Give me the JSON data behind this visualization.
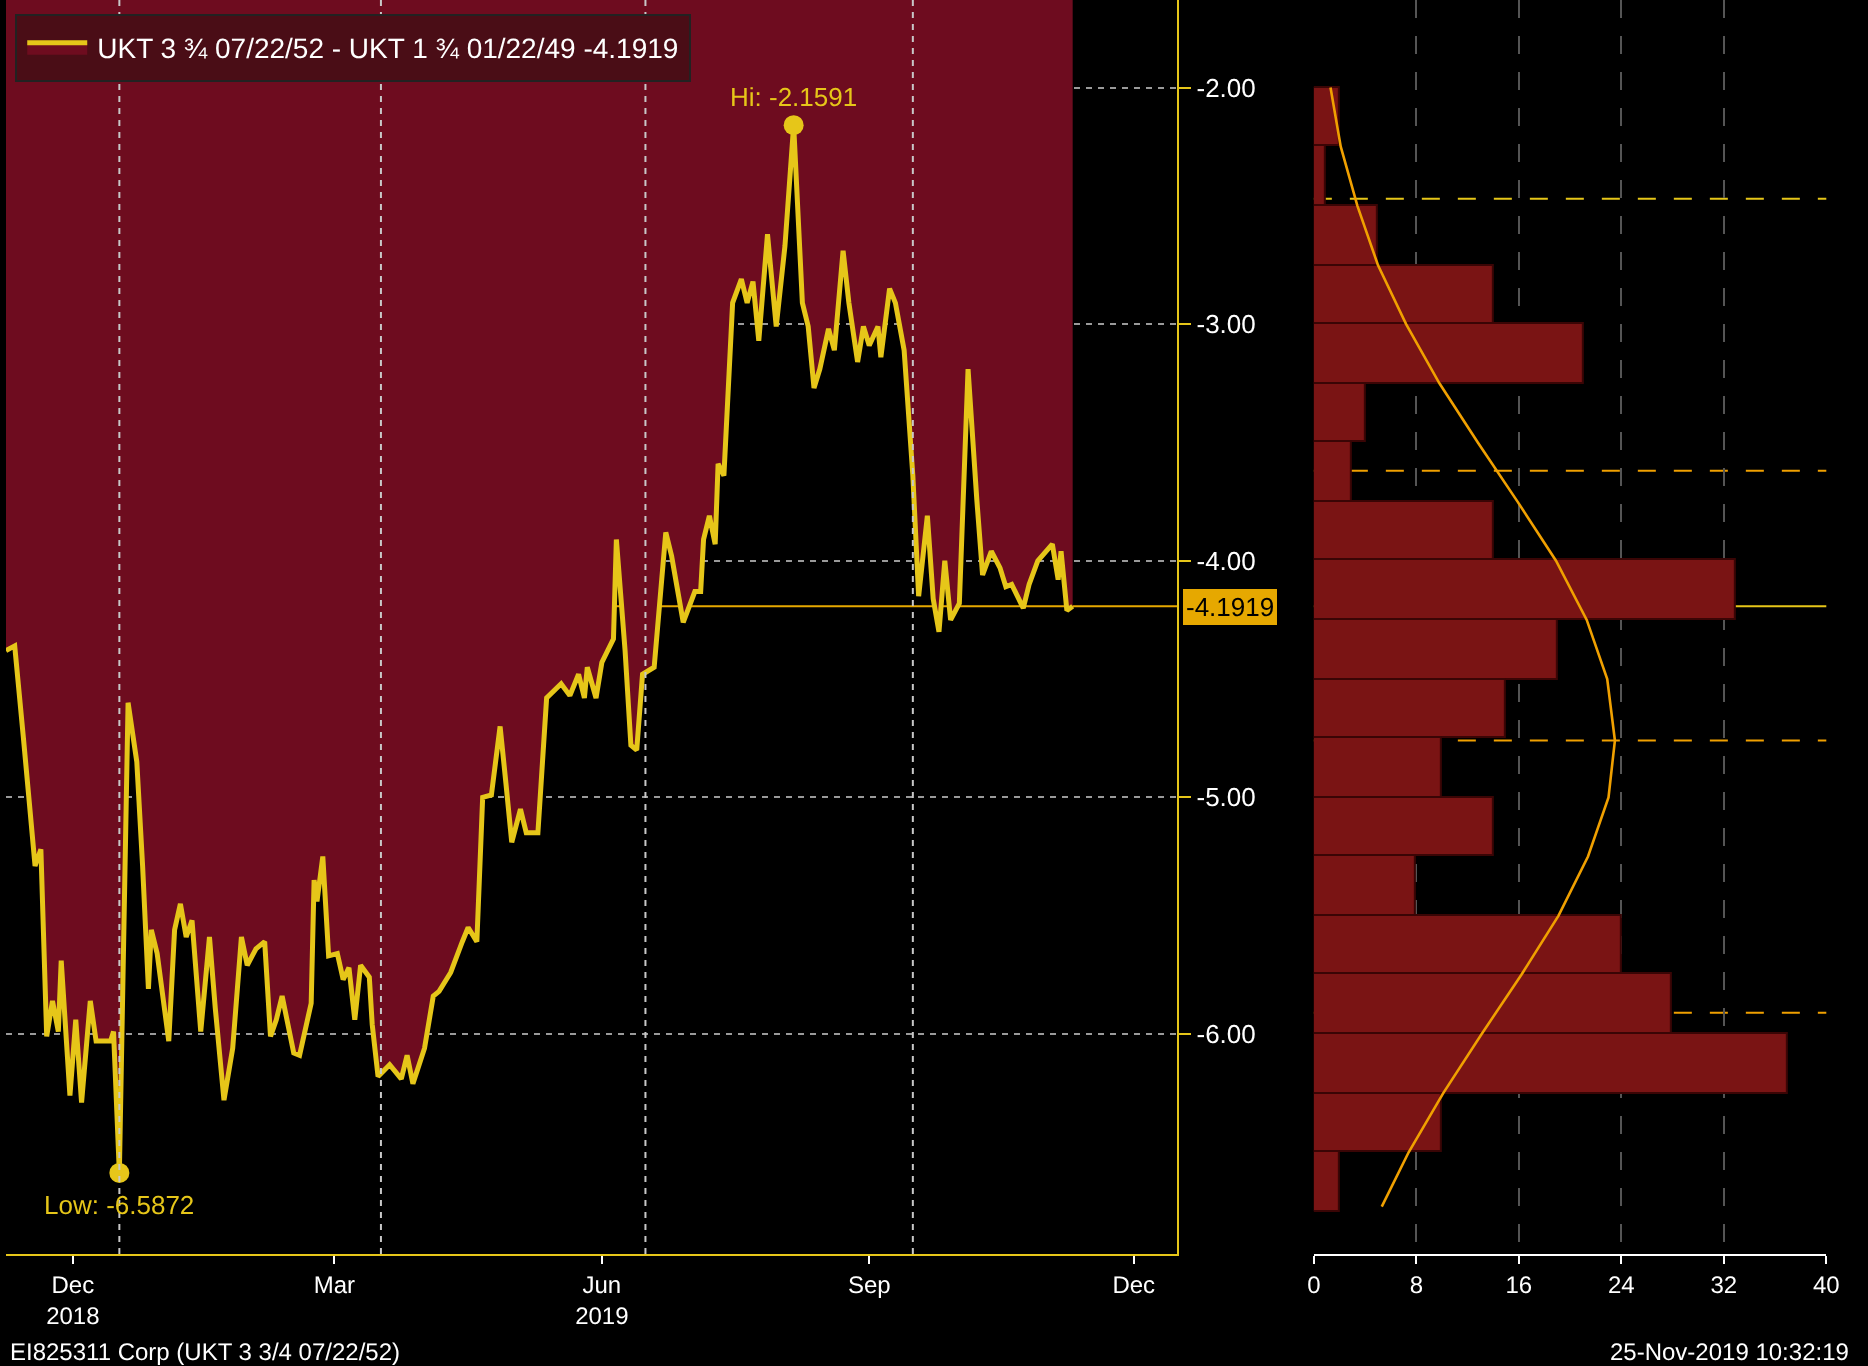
{
  "chart_data": [
    {
      "type": "area",
      "legend": "top left",
      "grid": "y",
      "series": [
        {
          "name": "UKT 3 ¾ 07/22/52 - UKT 1 ¾ 01/22/49 -4.1919",
          "color": "#e6c619",
          "x": [
            "2018-11-23",
            "2018-11-26",
            "2018-11-29",
            "2018-12-01",
            "2018-12-03",
            "2018-12-05",
            "2018-12-07",
            "2018-12-09",
            "2018-12-11",
            "2018-12-12",
            "2018-12-15",
            "2018-12-17",
            "2018-12-19",
            "2018-12-22",
            "2018-12-24",
            "2018-12-29",
            "2018-12-30",
            "2019-01-01",
            "2019-01-04",
            "2019-01-07",
            "2019-01-09",
            "2019-01-11",
            "2019-01-12",
            "2019-01-14",
            "2019-01-18",
            "2019-01-20",
            "2019-01-22",
            "2019-01-24",
            "2019-01-26",
            "2019-01-29",
            "2019-02-01",
            "2019-02-03",
            "2019-02-06",
            "2019-02-09",
            "2019-02-12",
            "2019-02-14",
            "2019-02-17",
            "2019-02-20",
            "2019-02-22",
            "2019-02-24",
            "2019-02-26",
            "2019-03-02",
            "2019-03-04",
            "2019-03-08",
            "2019-03-09",
            "2019-03-10",
            "2019-03-12",
            "2019-03-14",
            "2019-03-17",
            "2019-03-19",
            "2019-03-21",
            "2019-03-23",
            "2019-03-25",
            "2019-03-28",
            "2019-03-29",
            "2019-03-31",
            "2019-04-04",
            "2019-04-08",
            "2019-04-10",
            "2019-04-12",
            "2019-04-16",
            "2019-04-19",
            "2019-04-21",
            "2019-04-25",
            "2019-04-29",
            "2019-05-01",
            "2019-05-04",
            "2019-05-06",
            "2019-05-09",
            "2019-05-12",
            "2019-05-14",
            "2019-05-16",
            "2019-05-19",
            "2019-05-21",
            "2019-05-25",
            "2019-05-28",
            "2019-06-02",
            "2019-06-05",
            "2019-06-08",
            "2019-06-10",
            "2019-06-11",
            "2019-06-14",
            "2019-06-16",
            "2019-06-20",
            "2019-06-21",
            "2019-06-24",
            "2019-06-26",
            "2019-06-28",
            "2019-06-30",
            "2019-07-04",
            "2019-07-08",
            "2019-07-10",
            "2019-07-14",
            "2019-07-18",
            "2019-07-20",
            "2019-07-21",
            "2019-07-23",
            "2019-07-25",
            "2019-07-26",
            "2019-07-28",
            "2019-07-31",
            "2019-08-03",
            "2019-08-05",
            "2019-08-07",
            "2019-08-09",
            "2019-08-11",
            "2019-08-12",
            "2019-08-15",
            "2019-08-18",
            "2019-08-21",
            "2019-08-24",
            "2019-08-26",
            "2019-08-28",
            "2019-08-30",
            "2019-09-02",
            "2019-09-04",
            "2019-09-07",
            "2019-09-09",
            "2019-09-12",
            "2019-09-14",
            "2019-09-16",
            "2019-09-19",
            "2019-09-20",
            "2019-09-23",
            "2019-09-25",
            "2019-09-28",
            "2019-10-01",
            "2019-10-03",
            "2019-10-06",
            "2019-10-08",
            "2019-10-10",
            "2019-10-12",
            "2019-10-14",
            "2019-10-17",
            "2019-10-20",
            "2019-10-23",
            "2019-10-25",
            "2019-10-28",
            "2019-10-31",
            "2019-11-02",
            "2019-11-04",
            "2019-11-08",
            "2019-11-10",
            "2019-11-13",
            "2019-11-18",
            "2019-11-20",
            "2019-11-21",
            "2019-11-23",
            "2019-11-25"
          ],
          "values": [
            -4.38,
            -4.36,
            -4.75,
            -5.02,
            -5.29,
            -5.22,
            -6.01,
            -5.86,
            -5.99,
            -5.69,
            -6.26,
            -5.94,
            -6.29,
            -5.86,
            -6.03,
            -6.03,
            -5.99,
            -6.5872,
            -4.6,
            -4.85,
            -5.29,
            -5.81,
            -5.56,
            -5.66,
            -6.03,
            -5.56,
            -5.45,
            -5.59,
            -5.52,
            -5.99,
            -5.59,
            -5.89,
            -6.28,
            -6.06,
            -5.59,
            -5.71,
            -5.64,
            -5.61,
            -6.01,
            -5.94,
            -5.84,
            -6.08,
            -6.09,
            -5.87,
            -5.35,
            -5.44,
            -5.25,
            -5.67,
            -5.66,
            -5.77,
            -5.72,
            -5.94,
            -5.71,
            -5.76,
            -5.96,
            -6.18,
            -6.13,
            -6.19,
            -6.09,
            -6.21,
            -6.06,
            -5.84,
            -5.82,
            -5.74,
            -5.61,
            -5.55,
            -5.61,
            -5.0,
            -4.99,
            -4.7,
            -4.94,
            -5.19,
            -5.05,
            -5.15,
            -5.15,
            -4.58,
            -4.52,
            -4.57,
            -4.48,
            -4.58,
            -4.45,
            -4.58,
            -4.43,
            -4.33,
            -3.91,
            -4.38,
            -4.78,
            -4.8,
            -4.48,
            -4.45,
            -3.88,
            -3.98,
            -4.26,
            -4.13,
            -4.13,
            -3.91,
            -3.81,
            -3.93,
            -3.59,
            -3.64,
            -2.91,
            -2.81,
            -2.91,
            -2.82,
            -3.07,
            -2.77,
            -2.62,
            -3.01,
            -2.67,
            -2.1591,
            -2.91,
            -3.01,
            -3.27,
            -3.19,
            -3.02,
            -3.11,
            -2.69,
            -2.91,
            -3.16,
            -3.01,
            -3.09,
            -3.01,
            -3.14,
            -2.85,
            -2.91,
            -3.11,
            -3.64,
            -4.15,
            -3.81,
            -4.16,
            -4.3,
            -4.0,
            -4.25,
            -4.18,
            -3.19,
            -3.74,
            -4.06,
            -3.96,
            -4.03,
            -4.11,
            -4.1,
            -4.2,
            -4.1,
            -4.0,
            -3.93,
            -4.08,
            -3.96,
            -4.21,
            -4.1919
          ]
        }
      ],
      "xlim": [
        "2018-11-23",
        "2019-12-31"
      ],
      "xticks": [
        {
          "value": "2018-12-16",
          "label": "Dec\n2018"
        },
        {
          "value": "2019-03-16",
          "label": "Mar"
        },
        {
          "value": "2019-06-16",
          "label": "Jun\n2019"
        },
        {
          "value": "2019-09-16",
          "label": "Sep"
        },
        {
          "value": "2019-12-16",
          "label": "Dec"
        }
      ],
      "ylim": [
        -6.93,
        -1.63
      ],
      "yticks": [
        {
          "value": -2,
          "label": "-2.00"
        },
        {
          "value": -3,
          "label": "-3.00"
        },
        {
          "value": -4,
          "label": "-4.00"
        },
        {
          "value": -5,
          "label": "-5.00"
        },
        {
          "value": -6,
          "label": "-6.00"
        }
      ],
      "ref_lines": [
        {
          "axis": "y",
          "value": -4.1919,
          "label": "-4.1919",
          "color": "#e6a800",
          "line_style": "solid"
        },
        {
          "axis": "x",
          "value": "2019-01-01",
          "color": "#c8c8c8",
          "line_style": "dotted"
        },
        {
          "axis": "x",
          "value": "2019-04-01",
          "color": "#c8c8c8",
          "line_style": "dotted"
        },
        {
          "axis": "x",
          "value": "2019-07-01",
          "color": "#c8c8c8",
          "line_style": "dotted"
        },
        {
          "axis": "x",
          "value": "2019-10-01",
          "color": "#c8c8c8",
          "line_style": "dotted"
        }
      ],
      "annotations": [
        {
          "text": "Hi: -2.1591",
          "x": "2019-08-21",
          "y": -2.1591
        },
        {
          "text": "Low: -6.5872",
          "x": "2019-01-01",
          "y": -6.5872
        },
        "EI825311 Corp (UKT 3 3/4 07/22/52)",
        "25-Nov-2019 10:32:19"
      ]
    },
    {
      "type": "histogram",
      "orientation": "horizontal",
      "grid": "x",
      "tick_labels": "x",
      "color": "#7a1414",
      "bins": [
        -2.0,
        -2.25,
        -2.5,
        -2.75,
        -3.0,
        -3.25,
        -3.5,
        -3.75,
        -4.0,
        -4.25,
        -4.5,
        -4.75,
        -5.0,
        -5.25,
        -5.5,
        -5.75,
        -6.0,
        -6.25,
        -6.5,
        -6.75
      ],
      "values": [
        2,
        1,
        5,
        14,
        21,
        4,
        3,
        14,
        33,
        19,
        15,
        10,
        14,
        8,
        24,
        28,
        37,
        10,
        2
      ],
      "series": [
        {
          "type": "line",
          "color": "#f0a000",
          "x": [
            -2.0,
            -2.25,
            -2.5,
            -2.75,
            -3.0,
            -3.25,
            -3.5,
            -3.75,
            -4.0,
            -4.25,
            -4.5,
            -4.76,
            -5.0,
            -5.25,
            -5.5,
            -5.75,
            -6.0,
            -6.25,
            -6.5,
            -6.73
          ],
          "values": [
            1.3,
            2.1,
            3.4,
            5.0,
            7.2,
            9.8,
            12.8,
            15.9,
            18.9,
            21.3,
            22.9,
            23.5,
            23.0,
            21.4,
            19.1,
            16.2,
            13.1,
            10.1,
            7.4,
            5.3
          ]
        }
      ],
      "xlim": [
        0,
        40
      ],
      "xticks": [
        0,
        8,
        16,
        24,
        32,
        40
      ],
      "ylim": [
        -6.93,
        -1.63
      ],
      "ref_lines": [
        {
          "axis": "y",
          "value": -4.1919,
          "color": "#e6c619",
          "line_style": "solid"
        },
        {
          "axis": "y",
          "value": -2.47,
          "color": "#e6c619",
          "line_style": "dashed"
        },
        {
          "axis": "y",
          "value": -3.62,
          "color": "#f0a000",
          "line_style": "dashed"
        },
        {
          "axis": "y",
          "value": -4.76,
          "color": "#f0a000",
          "line_style": "dashed"
        },
        {
          "axis": "y",
          "value": -5.91,
          "color": "#f0a000",
          "line_style": "dashed"
        }
      ]
    }
  ]
}
